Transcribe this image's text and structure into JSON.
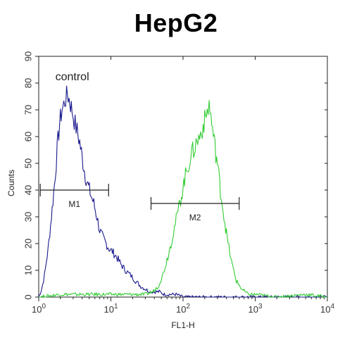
{
  "title": "HepG2",
  "chart_data": {
    "type": "line",
    "title": "HepG2",
    "xlabel": "FL1-H",
    "ylabel": "Counts",
    "xscale": "log",
    "xlim": [
      1,
      10000
    ],
    "ylim": [
      0,
      90
    ],
    "yticks": [
      0,
      10,
      20,
      30,
      40,
      50,
      60,
      70,
      80,
      90
    ],
    "xticks": [
      {
        "base": "10",
        "exp": "0",
        "value": 1
      },
      {
        "base": "10",
        "exp": "1",
        "value": 10
      },
      {
        "base": "10",
        "exp": "2",
        "value": 100
      },
      {
        "base": "10",
        "exp": "3",
        "value": 1000
      },
      {
        "base": "10",
        "exp": "4",
        "value": 10000
      }
    ],
    "grid": false,
    "series": [
      {
        "name": "control",
        "color": "#1a1a8c",
        "x": [
          1.0,
          1.1,
          1.2,
          1.35,
          1.5,
          1.65,
          1.8,
          1.95,
          2.1,
          2.3,
          2.5,
          2.7,
          2.9,
          3.1,
          3.4,
          3.7,
          4.0,
          4.4,
          4.8,
          5.3,
          5.8,
          6.4,
          7.0,
          7.8,
          8.6,
          9.5,
          10.5,
          12,
          14,
          16,
          19,
          22,
          26,
          30,
          35,
          40,
          47,
          55,
          65,
          80,
          100,
          150,
          250,
          500,
          1000,
          3000,
          10000
        ],
        "y": [
          0,
          3,
          8,
          18,
          30,
          42,
          55,
          65,
          70,
          73,
          76,
          73,
          70,
          66,
          62,
          58,
          52,
          46,
          42,
          38,
          35,
          30,
          25,
          22,
          20,
          18,
          17,
          15,
          12,
          10,
          8,
          6,
          4,
          3,
          2,
          2,
          2,
          1,
          1,
          1,
          0,
          0,
          0,
          0,
          0,
          0,
          0
        ]
      },
      {
        "name": "",
        "color": "#33cc33",
        "x": [
          1.0,
          2,
          5,
          10,
          20,
          30,
          38,
          45,
          52,
          60,
          68,
          76,
          85,
          95,
          105,
          115,
          125,
          140,
          155,
          170,
          190,
          210,
          230,
          250,
          270,
          300,
          330,
          370,
          420,
          480,
          550,
          650,
          800,
          1000,
          2000,
          5000,
          10000
        ],
        "y": [
          0,
          1,
          1,
          1,
          1,
          1,
          2,
          4,
          8,
          14,
          20,
          26,
          32,
          38,
          44,
          48,
          52,
          55,
          58,
          60,
          64,
          68,
          72,
          65,
          58,
          50,
          40,
          30,
          20,
          12,
          6,
          3,
          1,
          1,
          0,
          1,
          0
        ]
      }
    ],
    "annotations": [
      {
        "label": "control",
        "x": 1.7,
        "y": 81
      },
      {
        "label": "M1",
        "x1": 1.05,
        "x2": 9.3,
        "y": 40
      },
      {
        "label": "M2",
        "x1": 36,
        "x2": 600,
        "y": 35
      }
    ]
  }
}
